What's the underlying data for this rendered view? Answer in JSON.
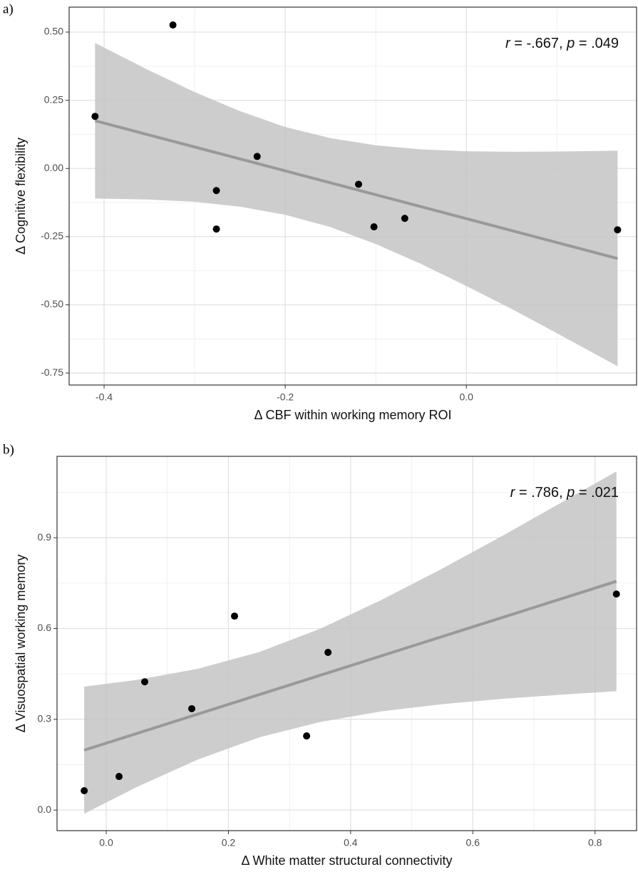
{
  "chart_data": [
    {
      "type": "scatter",
      "panel_label": "a)",
      "x_label": "Δ CBF within working memory ROI",
      "y_label": "Δ Cognitive flexibility",
      "annotation": [
        "r",
        " = -.667, ",
        "p",
        " = .049"
      ],
      "x": [
        -0.41,
        -0.324,
        -0.231,
        -0.276,
        -0.276,
        -0.119,
        -0.102,
        -0.068,
        0.167
      ],
      "values": [
        0.191,
        0.526,
        0.044,
        -0.081,
        -0.222,
        -0.058,
        -0.214,
        -0.183,
        -0.225
      ],
      "color": "#000000",
      "fit": {
        "x": [
          -0.41,
          0.167
        ],
        "y": [
          0.175,
          -0.33
        ],
        "color": "#999999"
      },
      "band": {
        "x": [
          -0.41,
          -0.35,
          -0.3,
          -0.25,
          -0.2,
          -0.15,
          -0.1,
          -0.05,
          0,
          0.05,
          0.1,
          0.167
        ],
        "upper": [
          0.46,
          0.359,
          0.28,
          0.21,
          0.152,
          0.111,
          0.085,
          0.07,
          0.063,
          0.061,
          0.062,
          0.065
        ],
        "lower": [
          -0.11,
          -0.114,
          -0.122,
          -0.14,
          -0.17,
          -0.215,
          -0.277,
          -0.35,
          -0.431,
          -0.515,
          -0.604,
          -0.725
        ],
        "color": "#c4c4c4"
      },
      "xlim": [
        -0.4386,
        0.188
      ],
      "ylim": [
        -0.794,
        0.5915
      ],
      "xticks": [
        -0.4,
        -0.2,
        {
          "value": 0,
          "label": "0.0"
        }
      ],
      "yticks": [
        {
          "value": -0.75,
          "label": "-0.75"
        },
        {
          "value": -0.5,
          "label": "-0.50"
        },
        {
          "value": -0.25,
          "label": "-0.25"
        },
        {
          "value": 0,
          "label": "0.00"
        },
        {
          "value": 0.25,
          "label": "0.25"
        },
        {
          "value": 0.5,
          "label": "0.50"
        }
      ],
      "xminor": [
        -0.3,
        -0.1,
        0.1
      ],
      "yminor": [
        -0.625,
        -0.375,
        -0.125,
        0.125,
        0.375
      ],
      "grid": true
    },
    {
      "type": "scatter",
      "panel_label": "b)",
      "x_label": "Δ White matter structural connectivity",
      "y_label": "Δ Visuospatial working memory",
      "annotation": [
        "r",
        " = .786, ",
        "p",
        " = .021"
      ],
      "x": [
        -0.036,
        0.021,
        0.063,
        0.14,
        0.21,
        0.363,
        0.328,
        0.835
      ],
      "values": [
        0.064,
        0.111,
        0.424,
        0.335,
        0.641,
        0.521,
        0.245,
        0.714
      ],
      "color": "#000000",
      "fit": {
        "x": [
          -0.036,
          0.835
        ],
        "y": [
          0.198,
          0.756
        ],
        "color": "#999999"
      },
      "band": {
        "x": [
          -0.036,
          0.05,
          0.15,
          0.25,
          0.35,
          0.45,
          0.55,
          0.65,
          0.75,
          0.835
        ],
        "upper": [
          0.408,
          0.43,
          0.467,
          0.522,
          0.599,
          0.694,
          0.798,
          0.908,
          1.022,
          1.119
        ],
        "lower": [
          -0.012,
          0.076,
          0.167,
          0.24,
          0.291,
          0.326,
          0.35,
          0.368,
          0.382,
          0.393
        ],
        "color": "#c4c4c4"
      },
      "xlim": [
        -0.0805,
        0.868
      ],
      "ylim": [
        -0.068,
        1.169
      ],
      "xticks": [
        {
          "value": 0,
          "label": "0.0"
        },
        0.2,
        0.4,
        0.6,
        0.8
      ],
      "yticks": [
        {
          "value": 0,
          "label": "0.0"
        },
        0.3,
        0.6,
        0.9
      ],
      "xminor": [
        0.1,
        0.3,
        0.5,
        0.7
      ],
      "yminor": [
        0.15,
        0.45,
        0.75,
        1.05
      ],
      "grid": true
    }
  ]
}
